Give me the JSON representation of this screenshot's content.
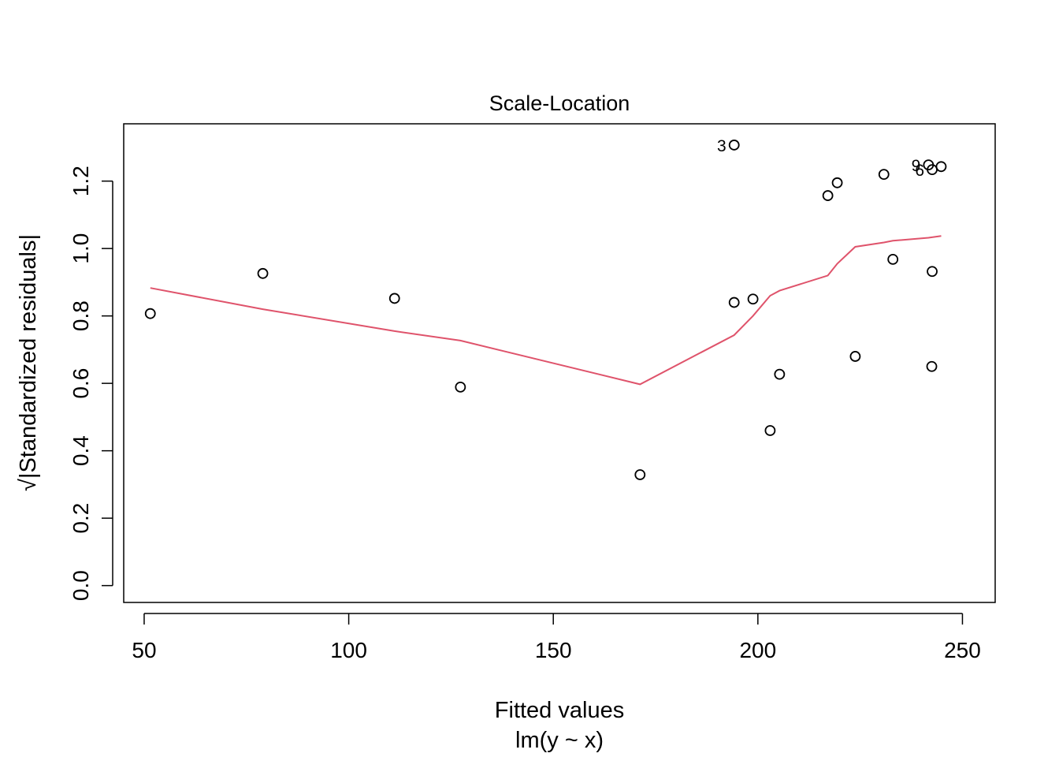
{
  "chart_data": {
    "type": "scatter",
    "title": "Scale-Location",
    "xlabel": "Fitted values",
    "xsublabel": "lm(y ~ x)",
    "ylabel": "√|Standardized residuals|",
    "xlim": [
      45,
      258
    ],
    "ylim": [
      -0.05,
      1.37
    ],
    "xticks": [
      50,
      100,
      150,
      200,
      250
    ],
    "yticks": [
      0.0,
      0.2,
      0.4,
      0.6,
      0.8,
      1.0,
      1.2
    ],
    "ytick_labels": [
      "0.0",
      "0.2",
      "0.4",
      "0.6",
      "0.8",
      "1.0",
      "1.2"
    ],
    "grid": false,
    "points": [
      {
        "x": 51.5,
        "y": 0.807
      },
      {
        "x": 79.0,
        "y": 0.926
      },
      {
        "x": 111.2,
        "y": 0.852
      },
      {
        "x": 127.3,
        "y": 0.589
      },
      {
        "x": 171.2,
        "y": 0.329
      },
      {
        "x": 194.2,
        "y": 1.307,
        "label": "3"
      },
      {
        "x": 194.2,
        "y": 0.84
      },
      {
        "x": 198.8,
        "y": 0.85
      },
      {
        "x": 203.0,
        "y": 0.46
      },
      {
        "x": 205.3,
        "y": 0.627
      },
      {
        "x": 217.1,
        "y": 1.157
      },
      {
        "x": 219.4,
        "y": 1.195
      },
      {
        "x": 223.8,
        "y": 0.68
      },
      {
        "x": 230.8,
        "y": 1.22
      },
      {
        "x": 233.0,
        "y": 0.968
      },
      {
        "x": 241.7,
        "y": 1.248,
        "label": "9"
      },
      {
        "x": 242.5,
        "y": 0.65
      },
      {
        "x": 242.6,
        "y": 0.932
      },
      {
        "x": 242.6,
        "y": 1.234,
        "label": "6"
      },
      {
        "x": 244.8,
        "y": 1.243
      }
    ],
    "smooth_line": {
      "color": "#DF536B",
      "x": [
        51.5,
        79.0,
        111.2,
        127.3,
        171.2,
        194.2,
        198.8,
        203.0,
        205.3,
        217.1,
        219.4,
        223.8,
        230.8,
        233.0,
        241.7,
        244.8
      ],
      "y": [
        0.883,
        0.82,
        0.755,
        0.727,
        0.597,
        0.743,
        0.8,
        0.86,
        0.875,
        0.92,
        0.955,
        1.005,
        1.018,
        1.023,
        1.032,
        1.037
      ]
    }
  }
}
